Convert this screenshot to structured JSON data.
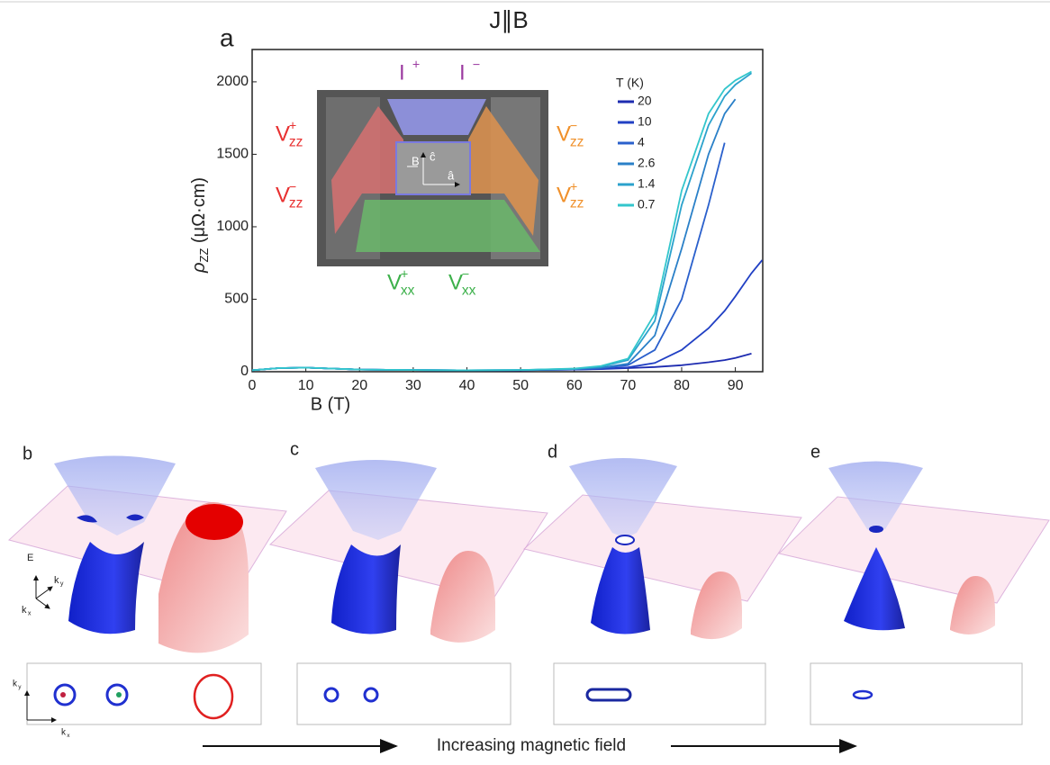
{
  "chart_data": {
    "type": "line",
    "title": "J∥B",
    "x_label": "B (T)",
    "y_label": {
      "symbol": "ρ",
      "sub": "ZZ",
      "unit": " (μΩ·cm)"
    },
    "x": [
      0,
      5,
      10,
      20,
      30,
      40,
      50,
      60,
      65,
      70,
      75,
      80,
      85,
      88,
      90,
      93,
      95
    ],
    "xlim": [
      0,
      95.1
    ],
    "xticks": [
      0,
      10,
      20,
      30,
      40,
      50,
      60,
      70,
      80,
      90
    ],
    "ylim": [
      0,
      2223
    ],
    "yticks": [
      0,
      500,
      1000,
      1500,
      2000
    ],
    "legend_title": "T (K)",
    "legend": "upper right",
    "series": [
      {
        "name": "20",
        "color": "#1d2bb0",
        "values": [
          10,
          25,
          28,
          15,
          12,
          10,
          10,
          15,
          18,
          25,
          32,
          45,
          65,
          80,
          95,
          125,
          null
        ]
      },
      {
        "name": "10",
        "color": "#2140c4",
        "values": [
          10,
          25,
          28,
          15,
          12,
          10,
          10,
          15,
          20,
          30,
          60,
          150,
          300,
          420,
          520,
          680,
          770
        ]
      },
      {
        "name": "4",
        "color": "#2a60cc",
        "values": [
          10,
          25,
          28,
          15,
          12,
          10,
          12,
          18,
          25,
          45,
          150,
          500,
          1150,
          1580,
          null,
          null,
          null
        ]
      },
      {
        "name": "2.6",
        "color": "#2a80c8",
        "values": [
          10,
          25,
          28,
          15,
          12,
          10,
          12,
          18,
          28,
          55,
          250,
          850,
          1500,
          1780,
          1880,
          null,
          null
        ]
      },
      {
        "name": "1.4",
        "color": "#2ba2cc",
        "values": [
          10,
          25,
          28,
          15,
          12,
          10,
          12,
          20,
          35,
          80,
          350,
          1150,
          1700,
          1900,
          1980,
          2060,
          null
        ]
      },
      {
        "name": "0.7",
        "color": "#33c6cc",
        "values": [
          10,
          25,
          28,
          15,
          12,
          10,
          12,
          22,
          40,
          90,
          400,
          1250,
          1780,
          1950,
          2010,
          2070,
          null
        ]
      }
    ]
  },
  "figure": {
    "panel_labels": [
      "a",
      "b",
      "c",
      "d",
      "e"
    ],
    "inset": {
      "labels": [
        {
          "base": "I",
          "sup": "+"
        },
        {
          "base": "I",
          "sup": "−"
        },
        {
          "base": "V",
          "sup": "+",
          "sub": "zz"
        },
        {
          "base": "V",
          "sup": "−",
          "sub": "zz"
        },
        {
          "base": "V",
          "sup": "−",
          "sub": "zz"
        },
        {
          "base": "V",
          "sup": "+",
          "sub": "zz"
        },
        {
          "base": "V",
          "sup": "+",
          "sub": "xx"
        },
        {
          "base": "V",
          "sup": "−",
          "sub": "xx"
        }
      ],
      "axes": [
        "B",
        "ĉ",
        "â"
      ]
    },
    "axes_3d": [
      {
        "base": "E"
      },
      {
        "base": "k",
        "sub": "y"
      },
      {
        "base": "k",
        "sub": "x"
      }
    ],
    "axes_2d": [
      {
        "base": "k",
        "sub": "y"
      },
      {
        "base": "k",
        "sub": "x"
      }
    ],
    "arrow_label": "Increasing magnetic field"
  }
}
